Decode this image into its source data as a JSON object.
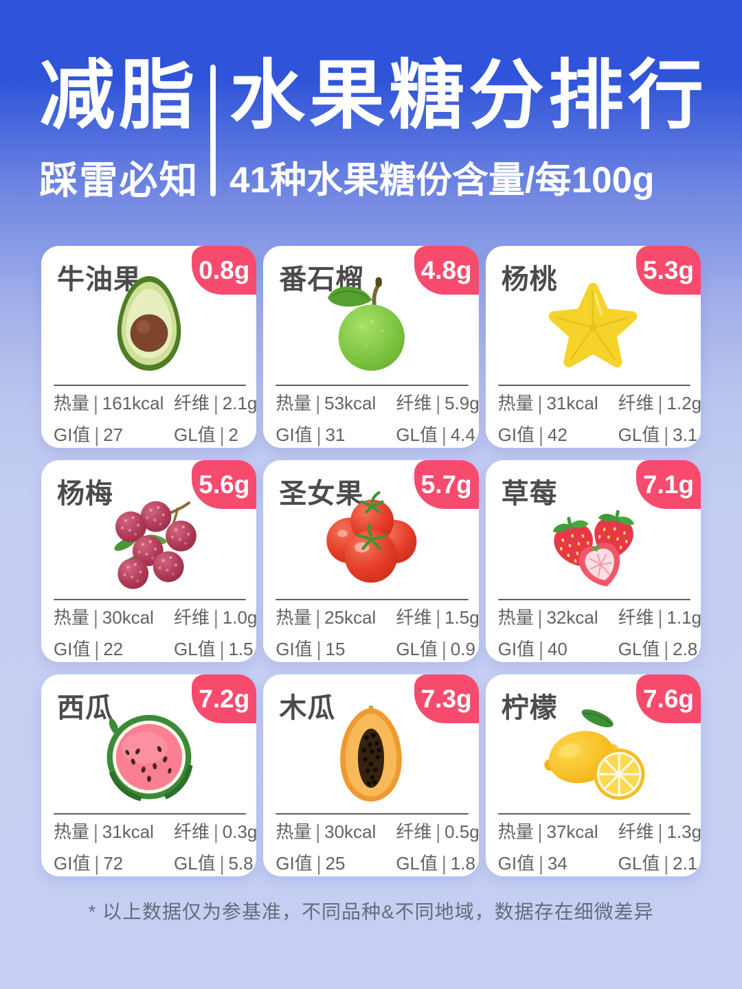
{
  "header": {
    "title_left": "减脂",
    "subtitle_left": "踩雷必知",
    "title_right": "水果糖分排行",
    "subtitle_right": "41种水果糖份含量/每100g"
  },
  "labels": {
    "calories": "热量",
    "fiber": "纤维",
    "gi": "GI值",
    "gl": "GL值",
    "sep": "|"
  },
  "colors": {
    "badge_pink": "#F74B6E",
    "background_top": "#2E52D9",
    "background_bottom": "#C6CFF3",
    "card_white": "#FFFFFF",
    "text_dark": "#4B4B4B",
    "text_gray": "#626262"
  },
  "cards": [
    {
      "name": "牛油果",
      "sugar": "0.8g",
      "image": "avocado",
      "calories": "161kcal",
      "fiber": "2.1g",
      "gi": "27",
      "gl": "2"
    },
    {
      "name": "番石榴",
      "sugar": "4.8g",
      "image": "guava",
      "calories": "53kcal",
      "fiber": "5.9g",
      "gi": "31",
      "gl": "4.4"
    },
    {
      "name": "杨桃",
      "sugar": "5.3g",
      "image": "starfruit",
      "calories": "31kcal",
      "fiber": "1.2g",
      "gi": "42",
      "gl": "3.1"
    },
    {
      "name": "杨梅",
      "sugar": "5.6g",
      "image": "bayberry",
      "calories": "30kcal",
      "fiber": "1.0g",
      "gi": "22",
      "gl": "1.5"
    },
    {
      "name": "圣女果",
      "sugar": "5.7g",
      "image": "cherry-tomato",
      "calories": "25kcal",
      "fiber": "1.5g",
      "gi": "15",
      "gl": "0.9"
    },
    {
      "name": "草莓",
      "sugar": "7.1g",
      "image": "strawberry",
      "calories": "32kcal",
      "fiber": "1.1g",
      "gi": "40",
      "gl": "2.8"
    },
    {
      "name": "西瓜",
      "sugar": "7.2g",
      "image": "watermelon",
      "calories": "31kcal",
      "fiber": "0.3g",
      "gi": "72",
      "gl": "5.8"
    },
    {
      "name": "木瓜",
      "sugar": "7.3g",
      "image": "papaya",
      "calories": "30kcal",
      "fiber": "0.5g",
      "gi": "25",
      "gl": "1.8"
    },
    {
      "name": "柠檬",
      "sugar": "7.6g",
      "image": "lemon",
      "calories": "37kcal",
      "fiber": "1.3g",
      "gi": "34",
      "gl": "2.1"
    }
  ],
  "footer": {
    "note": "* 以上数据仅为参基准，不同品种&不同地域，数据存在细微差异"
  }
}
